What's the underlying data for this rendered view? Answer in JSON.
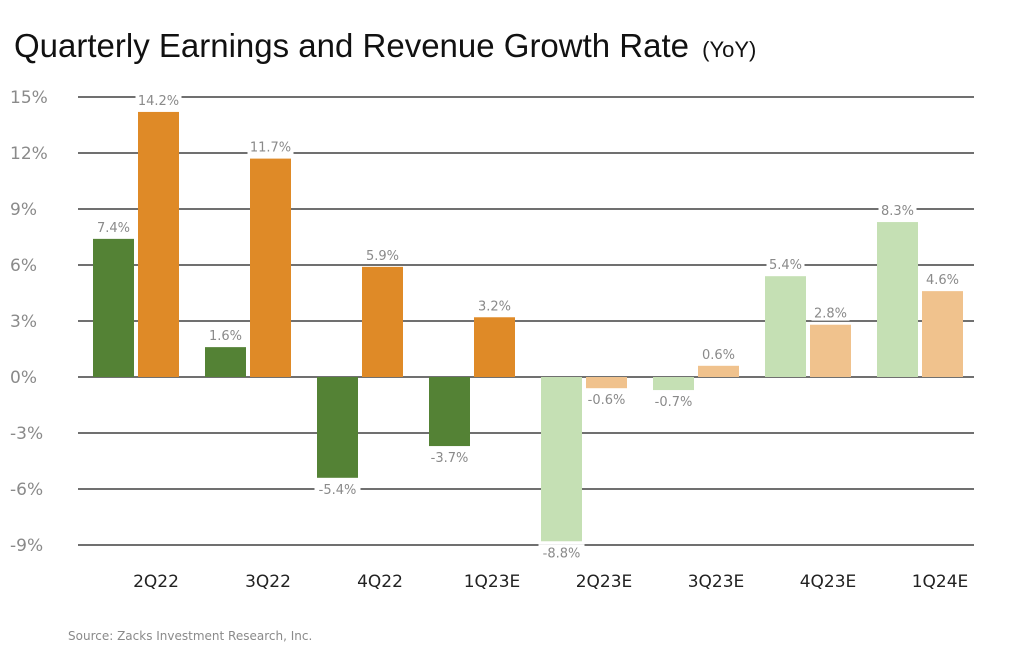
{
  "chart_data": {
    "type": "bar",
    "title": "Quarterly Earnings and Revenue Growth Rate",
    "subtitle": "(YoY)",
    "categories": [
      "2Q22",
      "3Q22",
      "4Q22",
      "1Q23E",
      "2Q23E",
      "3Q23E",
      "4Q23E",
      "1Q24E"
    ],
    "series": [
      {
        "values": [
          7.4,
          1.6,
          -5.4,
          -3.7,
          -8.8,
          -0.7,
          5.4,
          8.3
        ],
        "labels": [
          "7.4%",
          "1.6%",
          "-5.4%",
          "-3.7%",
          "-8.8%",
          "-0.7%",
          "5.4%",
          "8.3%"
        ],
        "colors": [
          "#548235",
          "#548235",
          "#548235",
          "#548235",
          "#C5E0B4",
          "#C5E0B4",
          "#C5E0B4",
          "#C5E0B4"
        ]
      },
      {
        "values": [
          14.2,
          11.7,
          5.9,
          3.2,
          -0.6,
          0.6,
          2.8,
          4.6
        ],
        "labels": [
          "14.2%",
          "11.7%",
          "5.9%",
          "3.2%",
          "-0.6%",
          "0.6%",
          "2.8%",
          "4.6%"
        ],
        "colors": [
          "#DF8A27",
          "#DF8A27",
          "#DF8A27",
          "#DF8A27",
          "#F0C28D",
          "#F0C28D",
          "#F0C28D",
          "#F0C28D"
        ]
      }
    ],
    "yticks": [
      15,
      12,
      9,
      6,
      3,
      0,
      -3,
      -6,
      -9
    ],
    "ytick_labels": [
      "15%",
      "12%",
      "9%",
      "6%",
      "3%",
      "0%",
      "-3%",
      "-6%",
      "-9%"
    ],
    "ylim": [
      -9,
      15
    ],
    "grid": true,
    "source": "Source: Zacks Investment Research, Inc."
  }
}
